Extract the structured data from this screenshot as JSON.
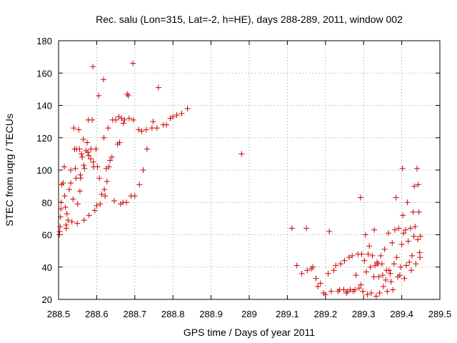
{
  "chart_data": {
    "type": "scatter",
    "title": "Rec. salu (Lon=315, Lat=-2, h=HE), days 288-289, 2011, window 002",
    "xlabel": "GPS time / Days of year 2011",
    "ylabel": "STEC from uqrg / TECUs",
    "xlim": [
      288.5,
      289.5
    ],
    "ylim": [
      20,
      180
    ],
    "xticks": [
      "288.5",
      "288.6",
      "288.7",
      "288.8",
      "288.9",
      "289",
      "289.1",
      "289.2",
      "289.3",
      "289.4",
      "289.5"
    ],
    "yticks": [
      "20",
      "40",
      "60",
      "80",
      "100",
      "120",
      "140",
      "160",
      "180"
    ],
    "grid": true,
    "marker": "+",
    "color": "#cc0000",
    "points": [
      [
        288.502,
        60
      ],
      [
        288.503,
        62
      ],
      [
        288.504,
        65
      ],
      [
        288.505,
        71
      ],
      [
        288.506,
        76
      ],
      [
        288.507,
        80
      ],
      [
        288.508,
        91
      ],
      [
        288.512,
        92
      ],
      [
        288.515,
        102
      ],
      [
        288.516,
        84
      ],
      [
        288.518,
        77
      ],
      [
        288.52,
        64
      ],
      [
        288.52,
        66
      ],
      [
        288.522,
        73
      ],
      [
        288.525,
        69
      ],
      [
        288.528,
        88
      ],
      [
        288.532,
        92
      ],
      [
        288.532,
        100
      ],
      [
        288.535,
        68
      ],
      [
        288.538,
        82
      ],
      [
        288.54,
        126
      ],
      [
        288.542,
        113
      ],
      [
        288.544,
        101
      ],
      [
        288.546,
        95
      ],
      [
        288.547,
        113
      ],
      [
        288.549,
        67
      ],
      [
        288.55,
        79
      ],
      [
        288.553,
        125
      ],
      [
        288.555,
        113
      ],
      [
        288.556,
        87
      ],
      [
        288.557,
        97
      ],
      [
        288.558,
        95
      ],
      [
        288.56,
        110
      ],
      [
        288.562,
        108
      ],
      [
        288.565,
        119
      ],
      [
        288.566,
        103
      ],
      [
        288.567,
        69
      ],
      [
        288.568,
        101
      ],
      [
        288.572,
        112
      ],
      [
        288.575,
        117
      ],
      [
        288.577,
        111
      ],
      [
        288.578,
        131
      ],
      [
        288.579,
        109
      ],
      [
        288.58,
        72
      ],
      [
        288.584,
        107
      ],
      [
        288.585,
        113
      ],
      [
        288.588,
        131
      ],
      [
        288.59,
        164
      ],
      [
        288.591,
        105
      ],
      [
        288.592,
        102
      ],
      [
        288.595,
        75
      ],
      [
        288.598,
        113
      ],
      [
        288.6,
        78
      ],
      [
        288.602,
        102
      ],
      [
        288.605,
        146
      ],
      [
        288.607,
        95
      ],
      [
        288.609,
        79
      ],
      [
        288.613,
        85
      ],
      [
        288.618,
        156
      ],
      [
        288.619,
        120
      ],
      [
        288.62,
        88
      ],
      [
        288.622,
        84
      ],
      [
        288.625,
        101
      ],
      [
        288.627,
        93
      ],
      [
        288.63,
        126
      ],
      [
        288.632,
        102
      ],
      [
        288.635,
        106
      ],
      [
        288.64,
        108
      ],
      [
        288.642,
        131
      ],
      [
        288.646,
        81
      ],
      [
        288.65,
        131
      ],
      [
        288.655,
        116
      ],
      [
        288.658,
        133
      ],
      [
        288.66,
        117
      ],
      [
        288.663,
        79
      ],
      [
        288.665,
        132
      ],
      [
        288.669,
        80
      ],
      [
        288.67,
        129
      ],
      [
        288.673,
        131
      ],
      [
        288.678,
        80
      ],
      [
        288.68,
        147
      ],
      [
        288.683,
        146
      ],
      [
        288.685,
        132
      ],
      [
        288.69,
        84
      ],
      [
        288.695,
        166
      ],
      [
        288.696,
        131
      ],
      [
        288.7,
        84
      ],
      [
        288.71,
        125
      ],
      [
        288.712,
        91
      ],
      [
        288.718,
        124
      ],
      [
        288.722,
        100
      ],
      [
        288.73,
        125
      ],
      [
        288.732,
        113
      ],
      [
        288.745,
        126
      ],
      [
        288.748,
        130
      ],
      [
        288.758,
        126
      ],
      [
        288.762,
        151
      ],
      [
        288.775,
        128
      ],
      [
        288.783,
        128
      ],
      [
        288.793,
        132
      ],
      [
        288.8,
        133
      ],
      [
        288.81,
        134
      ],
      [
        288.823,
        135
      ],
      [
        288.838,
        138
      ],
      [
        288.98,
        110
      ],
      [
        289.112,
        64
      ],
      [
        289.125,
        41
      ],
      [
        289.138,
        36
      ],
      [
        289.15,
        64
      ],
      [
        289.152,
        38
      ],
      [
        289.163,
        39
      ],
      [
        289.167,
        40
      ],
      [
        289.175,
        33
      ],
      [
        289.18,
        28
      ],
      [
        289.187,
        30
      ],
      [
        289.195,
        24
      ],
      [
        289.2,
        23
      ],
      [
        289.207,
        36
      ],
      [
        289.21,
        62
      ],
      [
        289.215,
        25
      ],
      [
        289.222,
        38
      ],
      [
        289.227,
        41
      ],
      [
        289.233,
        25
      ],
      [
        289.237,
        26
      ],
      [
        289.24,
        42
      ],
      [
        289.248,
        26
      ],
      [
        289.25,
        44
      ],
      [
        289.255,
        24
      ],
      [
        289.258,
        25
      ],
      [
        289.262,
        46
      ],
      [
        289.265,
        26
      ],
      [
        289.27,
        47
      ],
      [
        289.273,
        25
      ],
      [
        289.277,
        26
      ],
      [
        289.28,
        35
      ],
      [
        289.285,
        48
      ],
      [
        289.288,
        27
      ],
      [
        289.292,
        83
      ],
      [
        289.293,
        29
      ],
      [
        289.295,
        48
      ],
      [
        289.298,
        25
      ],
      [
        289.302,
        44
      ],
      [
        289.305,
        60
      ],
      [
        289.307,
        37
      ],
      [
        289.31,
        23
      ],
      [
        289.312,
        48
      ],
      [
        289.315,
        53
      ],
      [
        289.318,
        40
      ],
      [
        289.32,
        24
      ],
      [
        289.323,
        47
      ],
      [
        289.327,
        34
      ],
      [
        289.328,
        63
      ],
      [
        289.33,
        41
      ],
      [
        289.333,
        22
      ],
      [
        289.335,
        43
      ],
      [
        289.338,
        42
      ],
      [
        289.34,
        34
      ],
      [
        289.342,
        24
      ],
      [
        289.345,
        47
      ],
      [
        289.348,
        42
      ],
      [
        289.35,
        35
      ],
      [
        289.352,
        28
      ],
      [
        289.355,
        51
      ],
      [
        289.358,
        32
      ],
      [
        289.36,
        38
      ],
      [
        289.362,
        25
      ],
      [
        289.365,
        61
      ],
      [
        289.367,
        38
      ],
      [
        289.37,
        36
      ],
      [
        289.372,
        31
      ],
      [
        289.375,
        55
      ],
      [
        289.377,
        26
      ],
      [
        289.38,
        42
      ],
      [
        289.382,
        63
      ],
      [
        289.385,
        83
      ],
      [
        289.387,
        46
      ],
      [
        289.39,
        34
      ],
      [
        289.392,
        64
      ],
      [
        289.395,
        35
      ],
      [
        289.397,
        40
      ],
      [
        289.4,
        54
      ],
      [
        289.402,
        101
      ],
      [
        289.403,
        72
      ],
      [
        289.405,
        61
      ],
      [
        289.407,
        33
      ],
      [
        289.41,
        63
      ],
      [
        289.412,
        41
      ],
      [
        289.415,
        80
      ],
      [
        289.417,
        56
      ],
      [
        289.42,
        43
      ],
      [
        289.423,
        64
      ],
      [
        289.425,
        38
      ],
      [
        289.427,
        47
      ],
      [
        289.43,
        74
      ],
      [
        289.432,
        59
      ],
      [
        289.433,
        90
      ],
      [
        289.435,
        65
      ],
      [
        289.437,
        42
      ],
      [
        289.44,
        101
      ],
      [
        289.442,
        57
      ],
      [
        289.443,
        91
      ],
      [
        289.445,
        74
      ],
      [
        289.447,
        49
      ],
      [
        289.448,
        46
      ],
      [
        289.449,
        59
      ]
    ]
  }
}
